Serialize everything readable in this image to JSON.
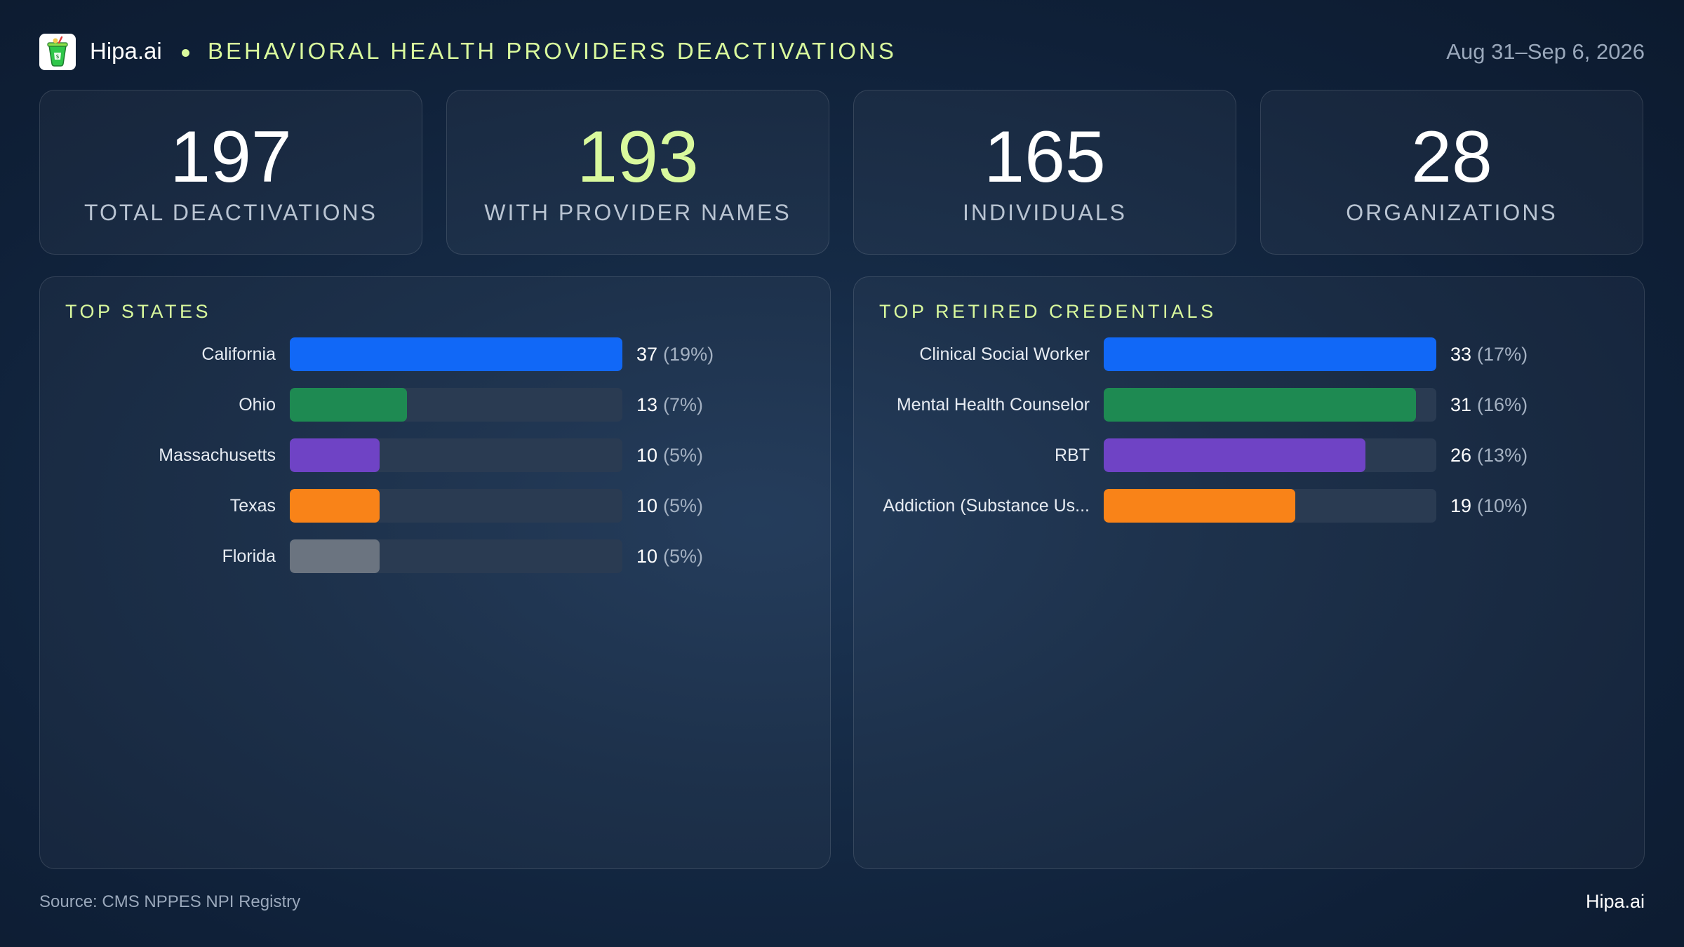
{
  "header": {
    "brand": "Hipa.ai",
    "title": "BEHAVIORAL HEALTH PROVIDERS DEACTIVATIONS",
    "date_range": "Aug 31–Sep 6, 2026",
    "logo_icon": "smoothie-cup-icon",
    "accent_color": "#d9f99d"
  },
  "kpis": [
    {
      "value": "197",
      "label": "TOTAL DEACTIVATIONS"
    },
    {
      "value": "193",
      "label": "WITH PROVIDER NAMES"
    },
    {
      "value": "165",
      "label": "INDIVIDUALS"
    },
    {
      "value": "28",
      "label": "ORGANIZATIONS"
    }
  ],
  "chart_data": [
    {
      "type": "bar",
      "orientation": "horizontal",
      "title": "TOP STATES",
      "categories": [
        "California",
        "Ohio",
        "Massachusetts",
        "Texas",
        "Florida"
      ],
      "values": [
        37,
        13,
        10,
        10,
        10
      ],
      "percent_labels": [
        "(19%)",
        "(7%)",
        "(5%)",
        "(5%)",
        "(5%)"
      ],
      "colors": [
        "#1168f7",
        "#1e8a52",
        "#6f43c5",
        "#f98318",
        "#6b7480"
      ],
      "xlim": [
        0,
        37
      ]
    },
    {
      "type": "bar",
      "orientation": "horizontal",
      "title": "TOP RETIRED CREDENTIALS",
      "categories": [
        "Clinical Social Worker",
        "Mental Health Counselor",
        "RBT",
        "Addiction (Substance Us..."
      ],
      "values": [
        33,
        31,
        26,
        19
      ],
      "percent_labels": [
        "(17%)",
        "(16%)",
        "(13%)",
        "(10%)"
      ],
      "colors": [
        "#1168f7",
        "#1e8a52",
        "#6f43c5",
        "#f98318"
      ],
      "xlim": [
        0,
        33
      ]
    }
  ],
  "footer": {
    "source": "Source: CMS NPPES NPI Registry",
    "brand": "Hipa.ai"
  },
  "colors": {
    "track": "#2a3b52",
    "muted_text": "#9aa8bb"
  }
}
